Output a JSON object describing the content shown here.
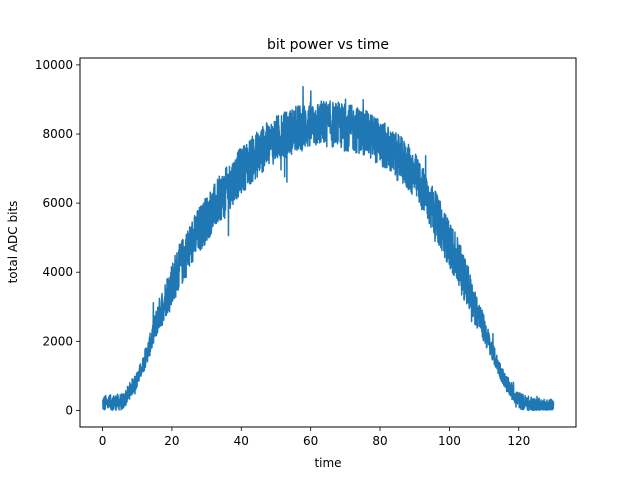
{
  "chart_data": {
    "type": "line",
    "title": "bit power vs time",
    "xlabel": "time",
    "ylabel": "total ADC bits",
    "xlim": [
      -6.5,
      136.5
    ],
    "ylim": [
      -480,
      10200
    ],
    "xticks": [
      0,
      20,
      40,
      60,
      80,
      100,
      120
    ],
    "yticks": [
      0,
      2000,
      4000,
      6000,
      8000,
      10000
    ],
    "xtick_labels": [
      "0",
      "20",
      "40",
      "60",
      "80",
      "100",
      "120"
    ],
    "ytick_labels": [
      "0",
      "2000",
      "4000",
      "6000",
      "8000",
      "10000"
    ],
    "grid": false,
    "series": [
      {
        "color": "#1f77b4",
        "x": [
          0,
          3,
          6,
          8,
          10,
          12,
          14,
          16,
          18,
          20,
          22,
          24,
          26,
          28,
          30,
          32,
          34,
          36,
          38,
          40,
          42,
          44,
          46,
          48,
          50,
          52,
          54,
          56,
          58,
          60,
          62,
          64,
          66,
          68,
          70,
          72,
          74,
          76,
          78,
          80,
          82,
          84,
          86,
          88,
          90,
          92,
          94,
          96,
          98,
          100,
          102,
          104,
          106,
          108,
          110,
          112,
          114,
          116,
          118,
          120,
          122,
          124,
          126,
          128,
          130
        ],
        "y": [
          200,
          220,
          250,
          600,
          900,
          1400,
          2000,
          2700,
          3200,
          3700,
          4100,
          4500,
          4900,
          5250,
          5550,
          5850,
          6150,
          6400,
          6700,
          6950,
          7150,
          7350,
          7550,
          7700,
          7850,
          7950,
          8050,
          8150,
          8200,
          8250,
          8300,
          8300,
          8280,
          8250,
          8200,
          8150,
          8100,
          8000,
          7900,
          7750,
          7600,
          7400,
          7250,
          7050,
          6800,
          6450,
          6050,
          5650,
          5250,
          4800,
          4400,
          3900,
          3400,
          2850,
          2350,
          1800,
          1300,
          850,
          550,
          300,
          200,
          150,
          120,
          110,
          100
        ],
        "noise_amplitude": 850
      }
    ]
  }
}
